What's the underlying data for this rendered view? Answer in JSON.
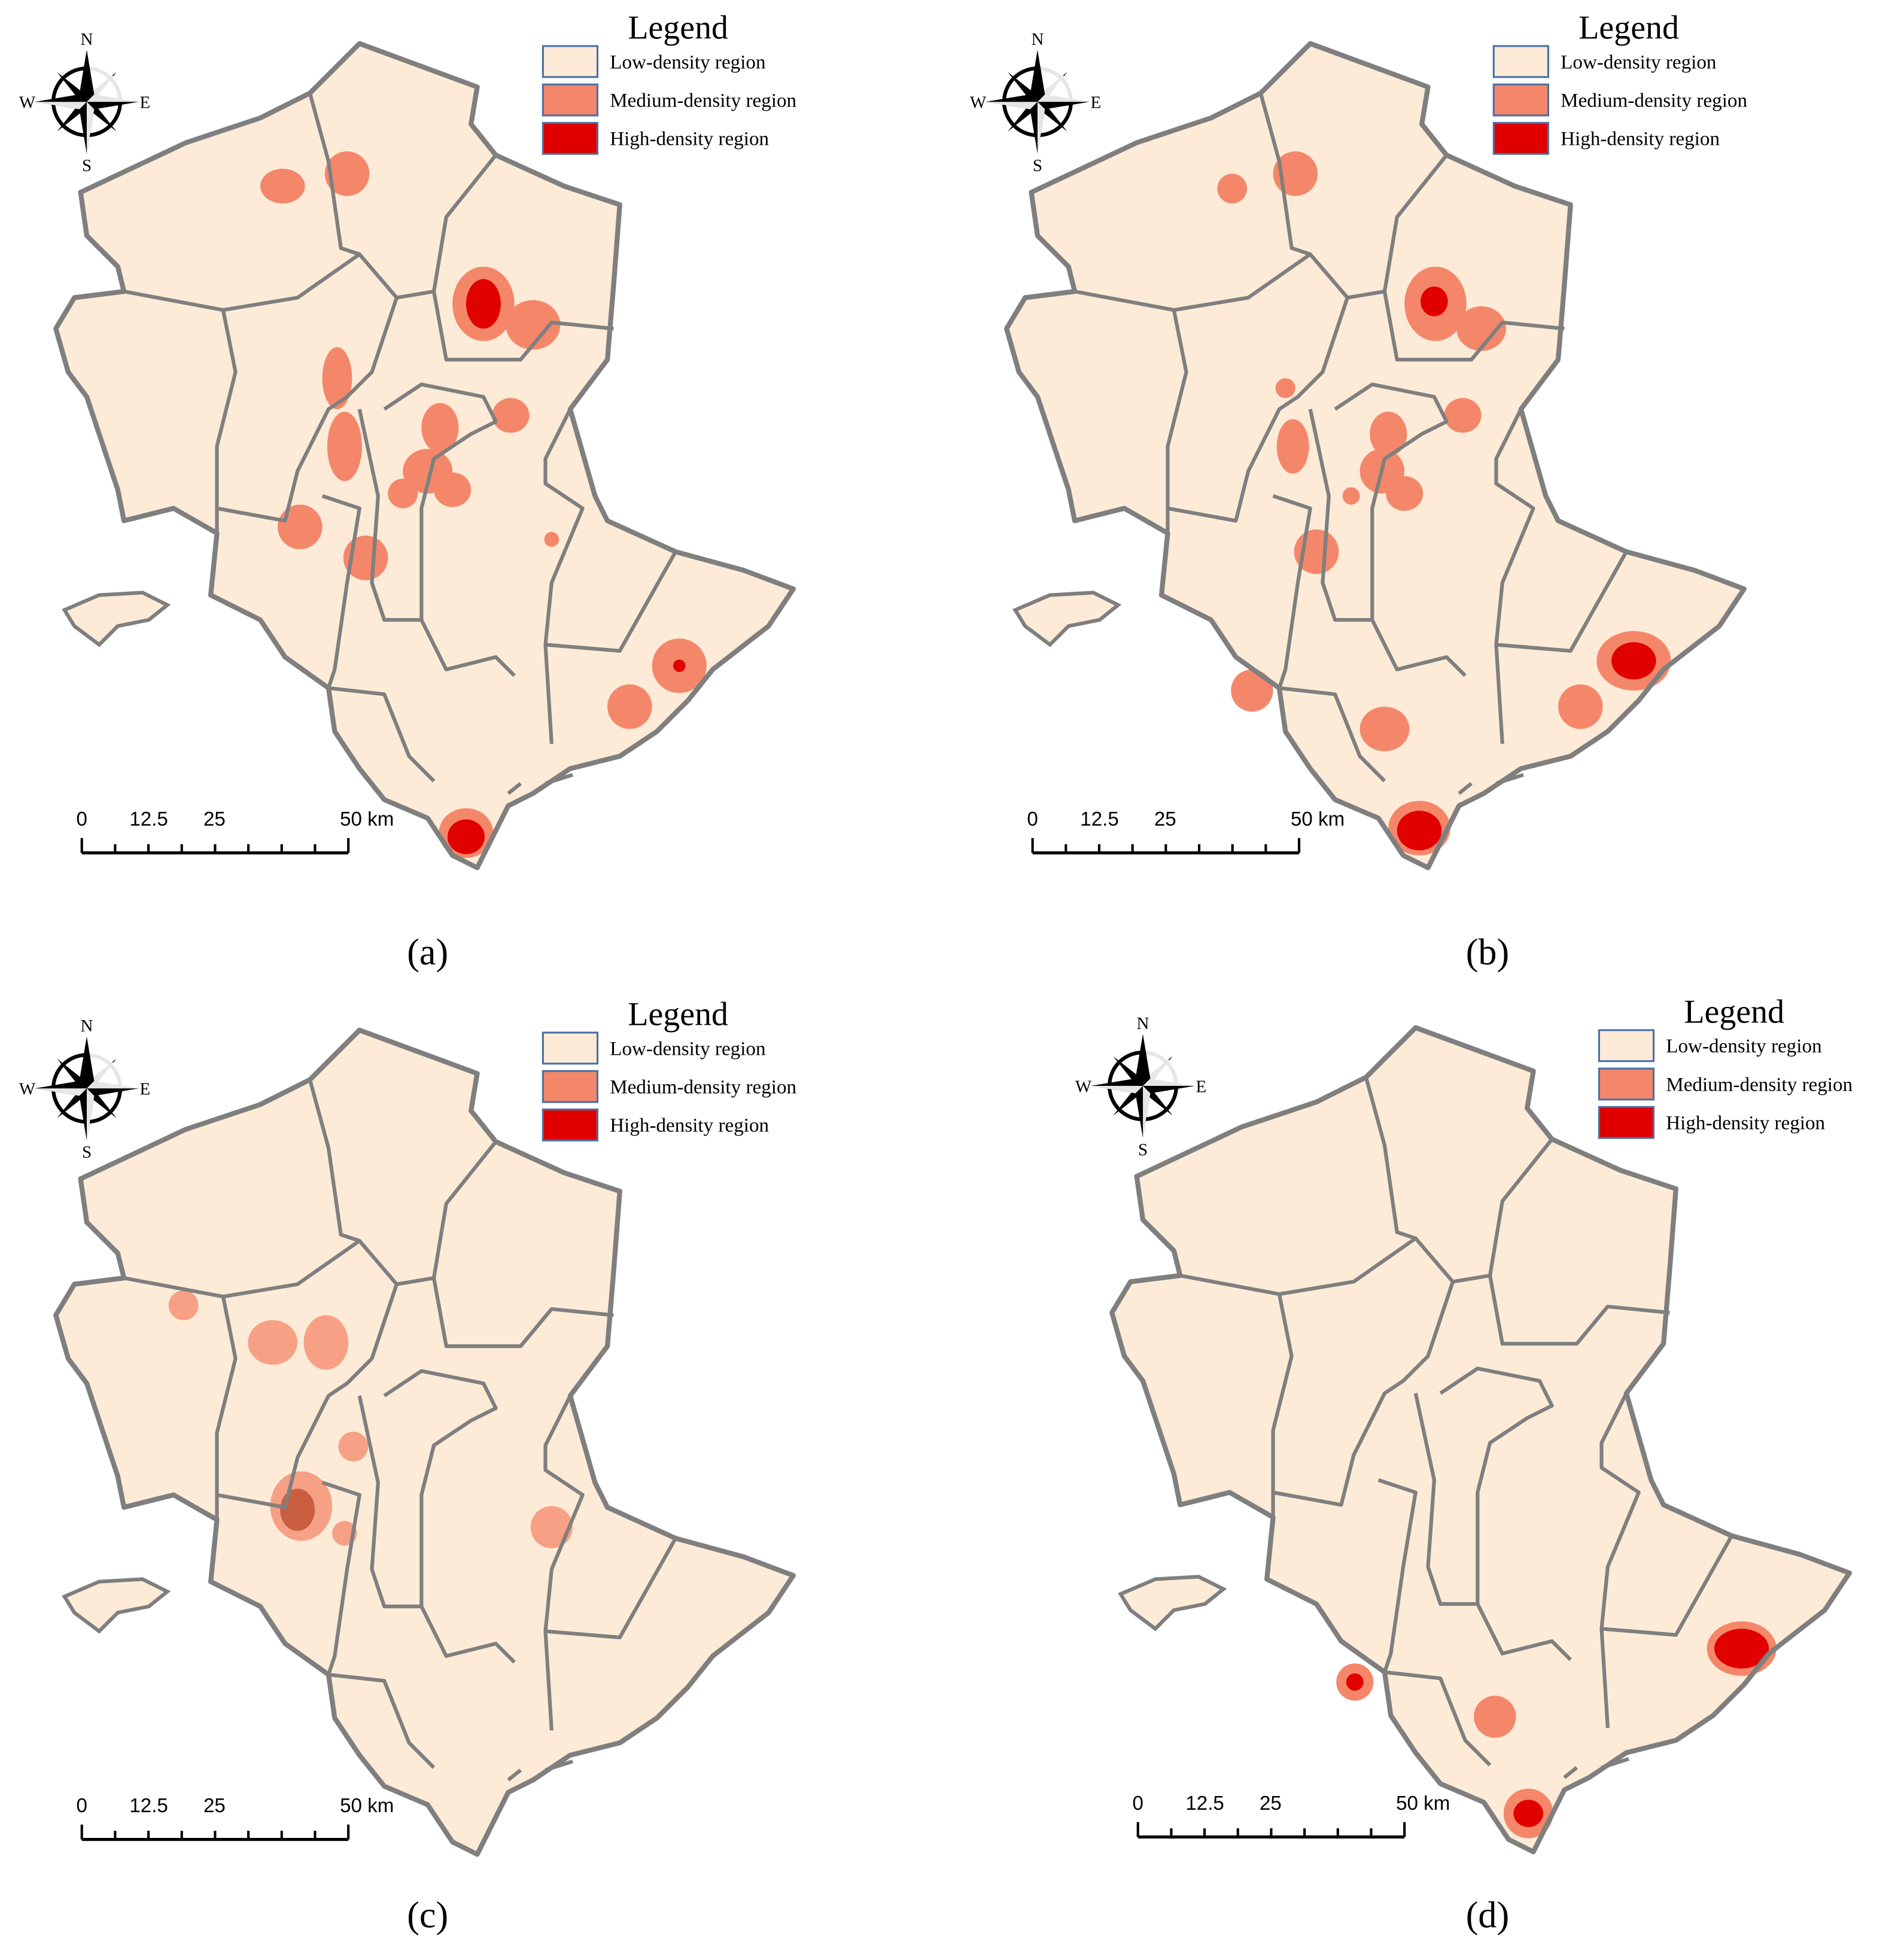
{
  "panels": [
    {
      "label": "(a)",
      "legend": {
        "title": "Legend",
        "items": [
          {
            "label": "Low-density region",
            "color": "#fdebd8"
          },
          {
            "label": "Medium-density region",
            "color": "#f4876a"
          },
          {
            "label": "High-density region",
            "color": "#e00000"
          }
        ]
      },
      "compass": {
        "north": "N",
        "south": "S",
        "west": "W",
        "east": "E"
      },
      "scale_bar": [
        "0",
        "12.5",
        "25",
        "50 km"
      ]
    },
    {
      "label": "(b)",
      "legend": {
        "title": "Legend",
        "items": [
          {
            "label": "Low-density region",
            "color": "#fdebd8"
          },
          {
            "label": "Medium-density region",
            "color": "#f4876a"
          },
          {
            "label": "High-density region",
            "color": "#e00000"
          }
        ]
      },
      "compass": {
        "north": "N",
        "south": "S",
        "west": "W",
        "east": "E"
      },
      "scale_bar": [
        "0",
        "12.5",
        "25",
        "50 km"
      ]
    },
    {
      "label": "(c)",
      "legend": {
        "title": "Legend",
        "items": [
          {
            "label": "Low-density region",
            "color": "#fdebd8"
          },
          {
            "label": "Medium-density region",
            "color": "#f4876a"
          },
          {
            "label": "High-density region",
            "color": "#e00000"
          }
        ]
      },
      "compass": {
        "north": "N",
        "south": "S",
        "west": "W",
        "east": "E"
      },
      "scale_bar": [
        "0",
        "12.5",
        "25",
        "50 km"
      ]
    },
    {
      "label": "(d)",
      "legend": {
        "title": "Legend",
        "items": [
          {
            "label": "Low-density region",
            "color": "#fdebd8"
          },
          {
            "label": "Medium-density region",
            "color": "#f4876a"
          },
          {
            "label": "High-density region",
            "color": "#e00000"
          }
        ]
      },
      "compass": {
        "north": "N",
        "south": "S",
        "west": "W",
        "east": "E"
      },
      "scale_bar": [
        "0",
        "12.5",
        "25",
        "50 km"
      ]
    }
  ]
}
